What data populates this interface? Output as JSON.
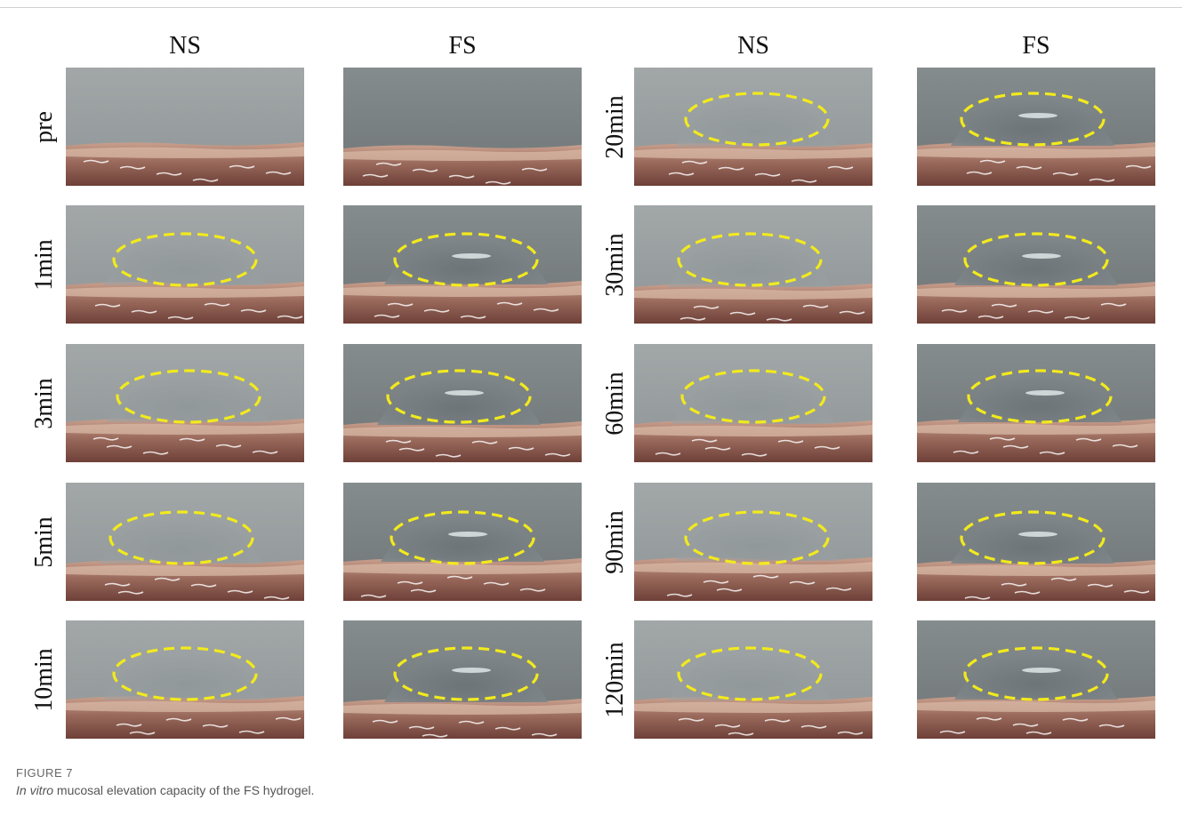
{
  "figure": {
    "column_headers": [
      "NS",
      "FS",
      "NS",
      "FS"
    ],
    "left_rows": [
      "pre",
      "1min",
      "3min",
      "5min",
      "10min"
    ],
    "right_rows": [
      "20min",
      "30min",
      "60min",
      "90min",
      "120min"
    ]
  },
  "caption": {
    "label": "FIGURE 7",
    "text_italic": "In vitro",
    "text_rest": " mucosal elevation capacity of the FS hydrogel."
  },
  "colors": {
    "ellipse": "#f2ea1c",
    "background_ns": "#9aa0a2",
    "background_fs": "#7e8587",
    "tissue_pink": "#c9a08e",
    "tissue_dark": "#6e4038"
  }
}
